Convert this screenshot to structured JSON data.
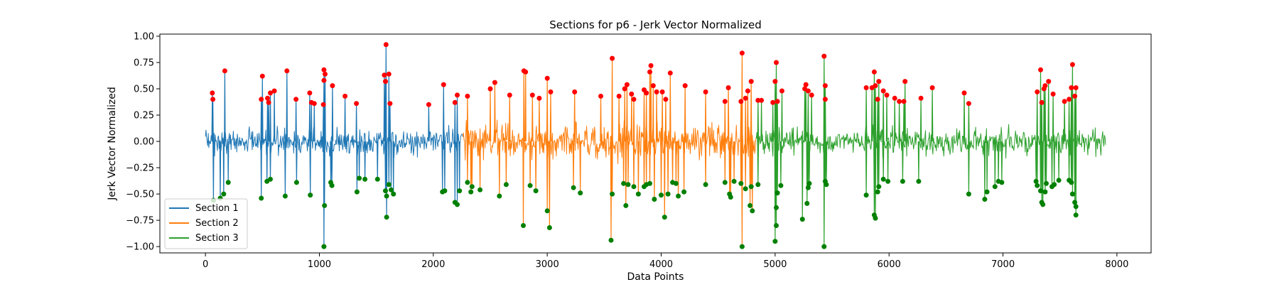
{
  "chart_data": {
    "type": "line",
    "title": "Sections for p6 - Jerk Vector Normalized",
    "xlabel": "Data Points",
    "ylabel": "Jerk Vector Normalized",
    "xlim": [
      -400,
      8300
    ],
    "ylim": [
      -1.06,
      1.02
    ],
    "xticks": [
      0,
      1000,
      2000,
      3000,
      4000,
      5000,
      6000,
      7000,
      8000
    ],
    "xtick_labels": [
      "0",
      "1000",
      "2000",
      "3000",
      "4000",
      "5000",
      "6000",
      "7000",
      "8000"
    ],
    "yticks": [
      1.0,
      0.75,
      0.5,
      0.25,
      0.0,
      -0.25,
      -0.5,
      -0.75,
      -1.0
    ],
    "ytick_labels": [
      "1.00",
      "0.75",
      "0.50",
      "0.25",
      "0.00",
      "−0.25",
      "−0.50",
      "−0.75",
      "−1.00"
    ],
    "grid": false,
    "legend_position": "lower-left",
    "series": [
      {
        "name": "Section 1",
        "color": "#1f77b4",
        "x_range": [
          0,
          2260
        ]
      },
      {
        "name": "Section 2",
        "color": "#ff7f0e",
        "x_range": [
          2260,
          4830
        ]
      },
      {
        "name": "Section 3",
        "color": "#2ca02c",
        "x_range": [
          4830,
          7900
        ]
      }
    ],
    "peak_marker_color": "#ff0000",
    "trough_marker_color": "#008000",
    "peaks": [
      {
        "x": 60,
        "y": 0.46
      },
      {
        "x": 65,
        "y": 0.4
      },
      {
        "x": 170,
        "y": 0.67
      },
      {
        "x": 500,
        "y": 0.62
      },
      {
        "x": 490,
        "y": 0.4
      },
      {
        "x": 545,
        "y": 0.41
      },
      {
        "x": 555,
        "y": 0.37
      },
      {
        "x": 570,
        "y": 0.46
      },
      {
        "x": 605,
        "y": 0.48
      },
      {
        "x": 715,
        "y": 0.67
      },
      {
        "x": 795,
        "y": 0.4
      },
      {
        "x": 915,
        "y": 0.46
      },
      {
        "x": 930,
        "y": 0.37
      },
      {
        "x": 955,
        "y": 0.36
      },
      {
        "x": 1035,
        "y": 0.35
      },
      {
        "x": 1040,
        "y": 0.68
      },
      {
        "x": 1050,
        "y": 0.64
      },
      {
        "x": 1040,
        "y": 0.58
      },
      {
        "x": 1115,
        "y": 0.53
      },
      {
        "x": 1225,
        "y": 0.43
      },
      {
        "x": 1325,
        "y": 0.36
      },
      {
        "x": 1570,
        "y": 0.63
      },
      {
        "x": 1585,
        "y": 0.92
      },
      {
        "x": 1580,
        "y": 0.57
      },
      {
        "x": 1610,
        "y": 0.64
      },
      {
        "x": 1620,
        "y": 0.36
      },
      {
        "x": 1960,
        "y": 0.35
      },
      {
        "x": 2090,
        "y": 0.54
      },
      {
        "x": 2190,
        "y": 0.37
      },
      {
        "x": 2210,
        "y": 0.44
      },
      {
        "x": 2300,
        "y": 0.43
      },
      {
        "x": 2500,
        "y": 0.5
      },
      {
        "x": 2540,
        "y": 0.56
      },
      {
        "x": 2670,
        "y": 0.44
      },
      {
        "x": 2795,
        "y": 0.67
      },
      {
        "x": 2810,
        "y": 0.66
      },
      {
        "x": 2870,
        "y": 0.44
      },
      {
        "x": 2930,
        "y": 0.41
      },
      {
        "x": 3000,
        "y": 0.6
      },
      {
        "x": 3030,
        "y": 0.47
      },
      {
        "x": 3240,
        "y": 0.47
      },
      {
        "x": 3470,
        "y": 0.43
      },
      {
        "x": 3570,
        "y": 0.79
      },
      {
        "x": 3630,
        "y": 0.43
      },
      {
        "x": 3680,
        "y": 0.5
      },
      {
        "x": 3700,
        "y": 0.54
      },
      {
        "x": 3740,
        "y": 0.45
      },
      {
        "x": 3760,
        "y": 0.4
      },
      {
        "x": 3850,
        "y": 0.49
      },
      {
        "x": 3870,
        "y": 0.46
      },
      {
        "x": 3900,
        "y": 0.66
      },
      {
        "x": 3910,
        "y": 0.72
      },
      {
        "x": 3930,
        "y": 0.53
      },
      {
        "x": 3960,
        "y": 0.47
      },
      {
        "x": 4010,
        "y": 0.47
      },
      {
        "x": 4040,
        "y": 0.4
      },
      {
        "x": 4080,
        "y": 0.65
      },
      {
        "x": 4210,
        "y": 0.53
      },
      {
        "x": 4390,
        "y": 0.47
      },
      {
        "x": 4560,
        "y": 0.38
      },
      {
        "x": 4590,
        "y": 0.51
      },
      {
        "x": 4700,
        "y": 0.38
      },
      {
        "x": 4710,
        "y": 0.84
      },
      {
        "x": 4740,
        "y": 0.41
      },
      {
        "x": 4760,
        "y": 0.48
      },
      {
        "x": 4790,
        "y": 0.57
      },
      {
        "x": 4850,
        "y": 0.39
      },
      {
        "x": 4880,
        "y": 0.39
      },
      {
        "x": 4980,
        "y": 0.37
      },
      {
        "x": 5000,
        "y": 0.57
      },
      {
        "x": 5010,
        "y": 0.75
      },
      {
        "x": 5020,
        "y": 0.38
      },
      {
        "x": 5060,
        "y": 0.48
      },
      {
        "x": 5260,
        "y": 0.5
      },
      {
        "x": 5270,
        "y": 0.54
      },
      {
        "x": 5290,
        "y": 0.48
      },
      {
        "x": 5320,
        "y": 0.44
      },
      {
        "x": 5430,
        "y": 0.81
      },
      {
        "x": 5440,
        "y": 0.53
      },
      {
        "x": 5440,
        "y": 0.4
      },
      {
        "x": 5800,
        "y": 0.51
      },
      {
        "x": 5850,
        "y": 0.51
      },
      {
        "x": 5870,
        "y": 0.66
      },
      {
        "x": 5880,
        "y": 0.53
      },
      {
        "x": 5900,
        "y": 0.4
      },
      {
        "x": 5910,
        "y": 0.57
      },
      {
        "x": 5950,
        "y": 0.48
      },
      {
        "x": 5980,
        "y": 0.44
      },
      {
        "x": 6050,
        "y": 0.41
      },
      {
        "x": 6090,
        "y": 0.38
      },
      {
        "x": 6130,
        "y": 0.38
      },
      {
        "x": 6140,
        "y": 0.57
      },
      {
        "x": 6280,
        "y": 0.41
      },
      {
        "x": 6380,
        "y": 0.51
      },
      {
        "x": 6660,
        "y": 0.46
      },
      {
        "x": 6700,
        "y": 0.36
      },
      {
        "x": 7300,
        "y": 0.47
      },
      {
        "x": 7330,
        "y": 0.68
      },
      {
        "x": 7340,
        "y": 0.37
      },
      {
        "x": 7360,
        "y": 0.5
      },
      {
        "x": 7370,
        "y": 0.53
      },
      {
        "x": 7400,
        "y": 0.57
      },
      {
        "x": 7440,
        "y": 0.45
      },
      {
        "x": 7540,
        "y": 0.38
      },
      {
        "x": 7580,
        "y": 0.4
      },
      {
        "x": 7600,
        "y": 0.51
      },
      {
        "x": 7610,
        "y": 0.73
      },
      {
        "x": 7630,
        "y": 0.43
      },
      {
        "x": 7640,
        "y": 0.51
      }
    ],
    "troughs": [
      {
        "x": 70,
        "y": -0.56
      },
      {
        "x": 130,
        "y": -0.54
      },
      {
        "x": 160,
        "y": -0.5
      },
      {
        "x": 200,
        "y": -0.39
      },
      {
        "x": 490,
        "y": -0.54
      },
      {
        "x": 540,
        "y": -0.38
      },
      {
        "x": 570,
        "y": -0.36
      },
      {
        "x": 700,
        "y": -0.52
      },
      {
        "x": 800,
        "y": -0.39
      },
      {
        "x": 920,
        "y": -0.51
      },
      {
        "x": 1040,
        "y": -1.0
      },
      {
        "x": 1045,
        "y": -0.61
      },
      {
        "x": 1100,
        "y": -0.39
      },
      {
        "x": 1110,
        "y": -0.42
      },
      {
        "x": 1330,
        "y": -0.48
      },
      {
        "x": 1350,
        "y": -0.35
      },
      {
        "x": 1400,
        "y": -0.36
      },
      {
        "x": 1510,
        "y": -0.36
      },
      {
        "x": 1580,
        "y": -0.47
      },
      {
        "x": 1590,
        "y": -0.52
      },
      {
        "x": 1590,
        "y": -0.72
      },
      {
        "x": 1610,
        "y": -0.41
      },
      {
        "x": 1630,
        "y": -0.46
      },
      {
        "x": 1650,
        "y": -0.5
      },
      {
        "x": 2080,
        "y": -0.48
      },
      {
        "x": 2100,
        "y": -0.47
      },
      {
        "x": 2190,
        "y": -0.58
      },
      {
        "x": 2210,
        "y": -0.6
      },
      {
        "x": 2230,
        "y": -0.47
      },
      {
        "x": 2300,
        "y": -0.39
      },
      {
        "x": 2330,
        "y": -0.48
      },
      {
        "x": 2340,
        "y": -0.43
      },
      {
        "x": 2410,
        "y": -0.46
      },
      {
        "x": 2580,
        "y": -0.52
      },
      {
        "x": 2640,
        "y": -0.41
      },
      {
        "x": 2790,
        "y": -0.8
      },
      {
        "x": 2850,
        "y": -0.42
      },
      {
        "x": 2900,
        "y": -0.47
      },
      {
        "x": 3000,
        "y": -0.66
      },
      {
        "x": 3020,
        "y": -0.82
      },
      {
        "x": 3230,
        "y": -0.44
      },
      {
        "x": 3290,
        "y": -0.49
      },
      {
        "x": 3560,
        "y": -0.94
      },
      {
        "x": 3570,
        "y": -0.5
      },
      {
        "x": 3670,
        "y": -0.4
      },
      {
        "x": 3690,
        "y": -0.61
      },
      {
        "x": 3710,
        "y": -0.41
      },
      {
        "x": 3760,
        "y": -0.43
      },
      {
        "x": 3800,
        "y": -0.5
      },
      {
        "x": 3850,
        "y": -0.43
      },
      {
        "x": 3870,
        "y": -0.41
      },
      {
        "x": 3900,
        "y": -0.4
      },
      {
        "x": 3940,
        "y": -0.55
      },
      {
        "x": 4000,
        "y": -0.51
      },
      {
        "x": 4030,
        "y": -0.72
      },
      {
        "x": 4060,
        "y": -0.5
      },
      {
        "x": 4100,
        "y": -0.39
      },
      {
        "x": 4130,
        "y": -0.4
      },
      {
        "x": 4150,
        "y": -0.52
      },
      {
        "x": 4200,
        "y": -0.48
      },
      {
        "x": 4390,
        "y": -0.41
      },
      {
        "x": 4560,
        "y": -0.39
      },
      {
        "x": 4600,
        "y": -0.5
      },
      {
        "x": 4610,
        "y": -0.53
      },
      {
        "x": 4640,
        "y": -0.38
      },
      {
        "x": 4700,
        "y": -0.4
      },
      {
        "x": 4710,
        "y": -1.0
      },
      {
        "x": 4740,
        "y": -0.45
      },
      {
        "x": 4780,
        "y": -0.61
      },
      {
        "x": 4790,
        "y": -0.43
      },
      {
        "x": 4800,
        "y": -0.66
      },
      {
        "x": 4850,
        "y": -0.41
      },
      {
        "x": 5000,
        "y": -0.95
      },
      {
        "x": 5010,
        "y": -0.8
      },
      {
        "x": 5010,
        "y": -0.63
      },
      {
        "x": 5020,
        "y": -0.49
      },
      {
        "x": 5050,
        "y": -0.42
      },
      {
        "x": 5240,
        "y": -0.74
      },
      {
        "x": 5280,
        "y": -0.59
      },
      {
        "x": 5290,
        "y": -0.44
      },
      {
        "x": 5300,
        "y": -0.4
      },
      {
        "x": 5430,
        "y": -1.0
      },
      {
        "x": 5440,
        "y": -0.38
      },
      {
        "x": 5450,
        "y": -0.41
      },
      {
        "x": 5800,
        "y": -0.51
      },
      {
        "x": 5870,
        "y": -0.7
      },
      {
        "x": 5880,
        "y": -0.73
      },
      {
        "x": 5900,
        "y": -0.48
      },
      {
        "x": 5910,
        "y": -0.43
      },
      {
        "x": 5950,
        "y": -0.36
      },
      {
        "x": 5990,
        "y": -0.38
      },
      {
        "x": 6120,
        "y": -0.38
      },
      {
        "x": 6260,
        "y": -0.38
      },
      {
        "x": 6700,
        "y": -0.5
      },
      {
        "x": 6840,
        "y": -0.55
      },
      {
        "x": 6860,
        "y": -0.48
      },
      {
        "x": 6930,
        "y": -0.43
      },
      {
        "x": 6960,
        "y": -0.38
      },
      {
        "x": 6990,
        "y": -0.39
      },
      {
        "x": 7290,
        "y": -0.38
      },
      {
        "x": 7300,
        "y": -0.42
      },
      {
        "x": 7330,
        "y": -0.47
      },
      {
        "x": 7340,
        "y": -0.58
      },
      {
        "x": 7350,
        "y": -0.6
      },
      {
        "x": 7370,
        "y": -0.48
      },
      {
        "x": 7380,
        "y": -0.4
      },
      {
        "x": 7430,
        "y": -0.43
      },
      {
        "x": 7450,
        "y": -0.41
      },
      {
        "x": 7490,
        "y": -0.37
      },
      {
        "x": 7580,
        "y": -0.37
      },
      {
        "x": 7600,
        "y": -0.39
      },
      {
        "x": 7610,
        "y": -0.5
      },
      {
        "x": 7630,
        "y": -0.58
      },
      {
        "x": 7640,
        "y": -0.62
      },
      {
        "x": 7640,
        "y": -0.7
      }
    ]
  }
}
